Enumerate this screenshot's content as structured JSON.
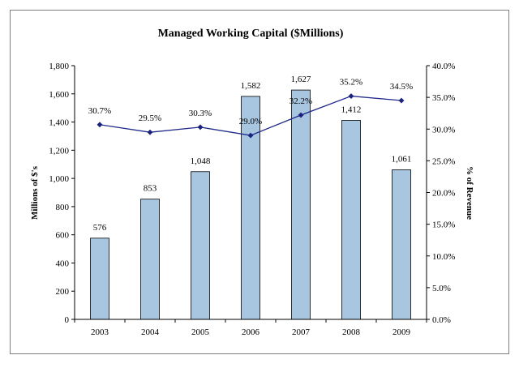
{
  "chart_data": {
    "type": "bar",
    "title": "Managed Working Capital ($Millions)",
    "categories": [
      "2003",
      "2004",
      "2005",
      "2006",
      "2007",
      "2008",
      "2009"
    ],
    "series": [
      {
        "name": "",
        "type": "bar",
        "axis": "left",
        "values": [
          576,
          853,
          1048,
          1582,
          1627,
          1412,
          1061
        ],
        "value_labels": [
          "576",
          "853",
          "1,048",
          "1,582",
          "1,627",
          "1,412",
          "1,061"
        ]
      },
      {
        "name": "",
        "type": "line",
        "axis": "right",
        "values": [
          30.7,
          29.5,
          30.3,
          29.0,
          32.2,
          35.2,
          34.5
        ],
        "value_labels": [
          "30.7%",
          "29.5%",
          "30.3%",
          "29.0%",
          "32.2%",
          "35.2%",
          "34.5%"
        ]
      }
    ],
    "ylabel": "Millions of $'s",
    "y2label": "% of Revenue",
    "ylim": [
      0,
      1800
    ],
    "y2lim": [
      0,
      40
    ],
    "yticks": [
      "0",
      "200",
      "400",
      "600",
      "800",
      "1,000",
      "1,200",
      "1,400",
      "1,600",
      "1,800"
    ],
    "y2ticks": [
      "0.0%",
      "5.0%",
      "10.0%",
      "15.0%",
      "20.0%",
      "25.0%",
      "30.0%",
      "35.0%",
      "40.0%"
    ],
    "grid": false,
    "legend": "none",
    "colors": {
      "bar_fill": "#a9c6e0",
      "bar_stroke": "#000000",
      "line": "#1f2a8c",
      "marker": "#1a237e",
      "frame": "#808080"
    }
  }
}
